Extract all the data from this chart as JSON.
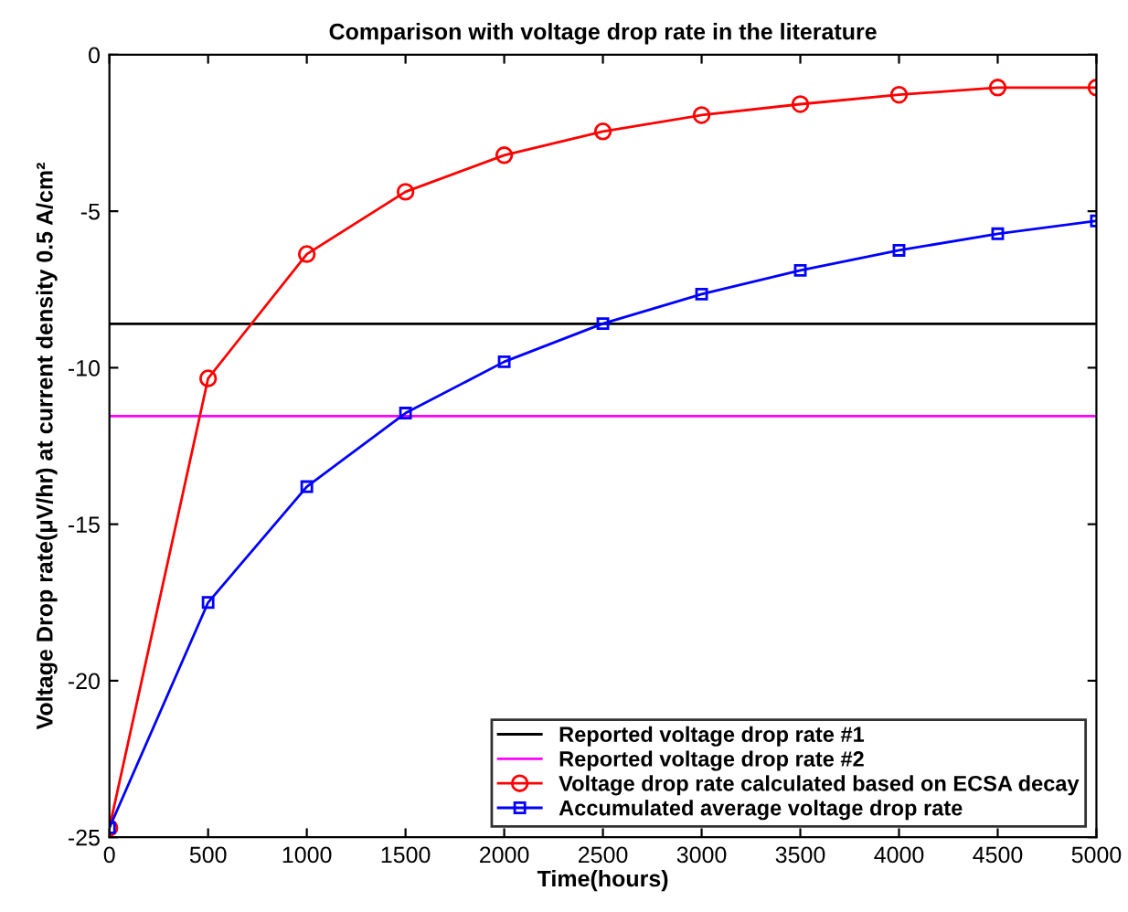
{
  "chart_data": {
    "type": "line",
    "title": "Comparison with voltage drop rate in the literature",
    "xlabel": "Time(hours)",
    "ylabel": "Voltage Drop rate(μV/hr) at current density 0.5 A/cm²",
    "x": [
      0,
      500,
      1000,
      1500,
      2000,
      2500,
      3000,
      3500,
      4000,
      4500,
      5000
    ],
    "series": [
      {
        "name": "Voltage drop rate calculated based on ECSA decay",
        "color": "#ff0000",
        "marker": "circle",
        "values": [
          -24.7,
          -10.34,
          -6.37,
          -4.38,
          -3.21,
          -2.45,
          -1.93,
          -1.58,
          -1.28,
          -1.05,
          -1.05
        ]
      },
      {
        "name": "Accumulated average voltage drop rate",
        "color": "#0000ff",
        "marker": "square",
        "values": [
          -24.7,
          -17.5,
          -13.8,
          -11.45,
          -9.81,
          -8.59,
          -7.65,
          -6.89,
          -6.25,
          -5.72,
          -5.31
        ]
      }
    ],
    "ref_lines": [
      {
        "axis": "y",
        "value": -8.6,
        "label": "Reported voltage drop rate #1",
        "color": "#000000"
      },
      {
        "axis": "y",
        "value": -11.55,
        "label": "Reported voltage drop rate #2",
        "color": "#ff00ff"
      }
    ],
    "xlim": [
      0,
      5000
    ],
    "ylim": [
      -25,
      0
    ],
    "xticks": [
      0,
      500,
      1000,
      1500,
      2000,
      2500,
      3000,
      3500,
      4000,
      4500,
      5000
    ],
    "yticks": [
      -25,
      -20,
      -15,
      -10,
      -5,
      0
    ],
    "grid": false,
    "legend": "bottom right"
  }
}
